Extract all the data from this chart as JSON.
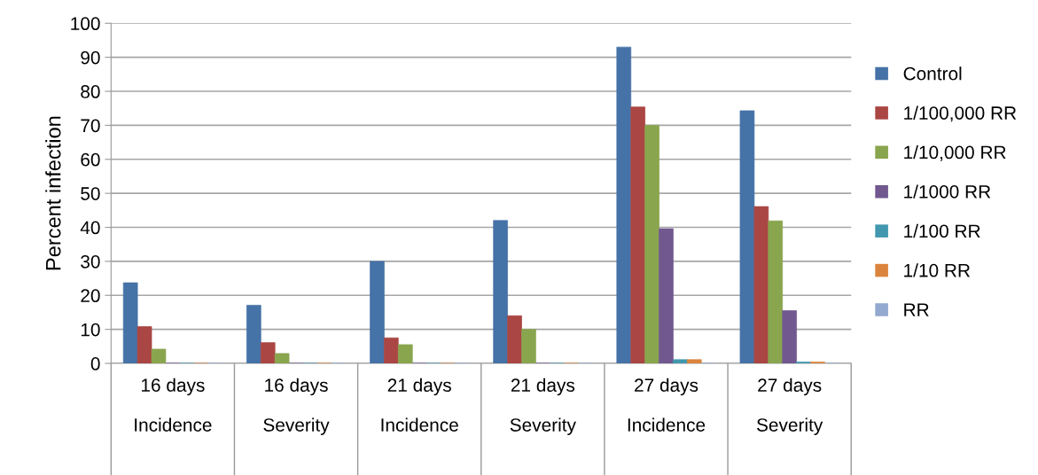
{
  "chart_data": {
    "type": "bar",
    "ylabel": "Percent infection",
    "categories": [
      "16 days\n\nIncidence",
      "16 days\n\nSeverity",
      "21 days\n\nIncidence",
      "21 days\n\nSeverity",
      "27 days\n\nIncidence",
      "27 days\n\nSeverity"
    ],
    "series": [
      {
        "name": "Control",
        "color": "#4572a7",
        "values": [
          23.7,
          17.1,
          30,
          42,
          93,
          74.3
        ]
      },
      {
        "name": "1/100,000 RR",
        "color": "#aa4643",
        "values": [
          10.8,
          6.1,
          7.5,
          14,
          75.4,
          46.1
        ]
      },
      {
        "name": "1/10,000 RR",
        "color": "#89a54e",
        "values": [
          4.2,
          2.9,
          5.5,
          10,
          70,
          41.9
        ]
      },
      {
        "name": "1/1000 RR",
        "color": "#71588f",
        "values": [
          0,
          0,
          0,
          0,
          39.6,
          15.5
        ]
      },
      {
        "name": "1/100 RR",
        "color": "#4198af",
        "values": [
          0,
          0,
          0,
          0,
          1.1,
          0.4
        ]
      },
      {
        "name": "1/10 RR",
        "color": "#db843d",
        "values": [
          0,
          0,
          0,
          0,
          1.1,
          0.4
        ]
      },
      {
        "name": "RR",
        "color": "#93a9cf",
        "values": [
          0,
          0,
          0,
          0,
          0,
          0
        ]
      }
    ],
    "ylim": [
      0,
      100
    ],
    "yticks": [
      0,
      10,
      20,
      30,
      40,
      50,
      60,
      70,
      80,
      90,
      100
    ],
    "grid": "y",
    "legend": "right"
  }
}
